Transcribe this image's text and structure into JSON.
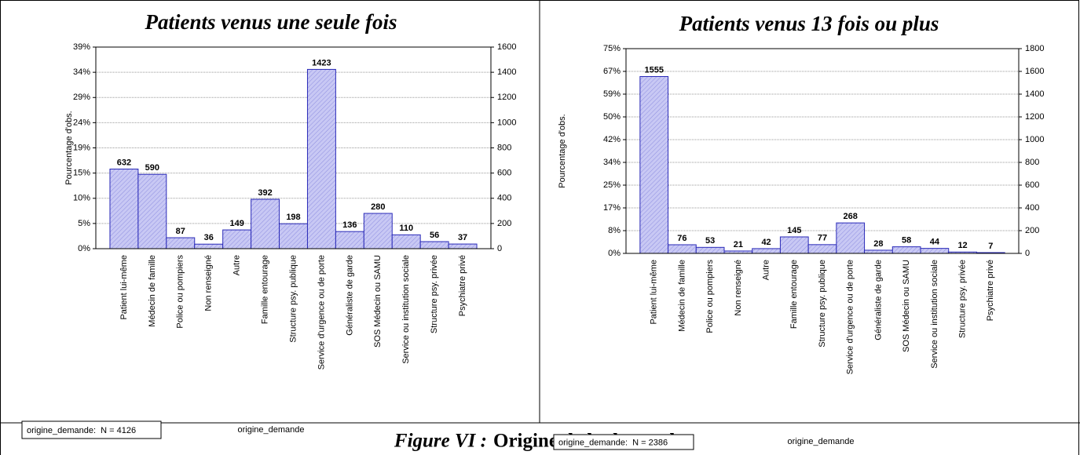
{
  "chart_data": [
    {
      "type": "bar",
      "title": "Patients venus une seule fois",
      "y_label": "Pourcentage d'obs.",
      "x_label": "origine_demande",
      "annotation": "origine_demande:  N = 4126",
      "categories": [
        "Patient lui-même",
        "Médecin de famille",
        "Police ou pompiers",
        "Non renseigné",
        "Autre",
        "Famille entourage",
        "Structure psy. publique",
        "Service d'urgence ou de porte",
        "Généraliste de garde",
        "SOS Médecin ou SAMU",
        "Service ou institution sociale",
        "Structure psy. privée",
        "Psychiatre privé"
      ],
      "series": [
        {
          "values": [
            632,
            590,
            87,
            36,
            149,
            392,
            198,
            1423,
            136,
            280,
            110,
            56,
            37
          ],
          "color": "#c8c8f4",
          "axis": "y2"
        }
      ],
      "ylim": [
        0,
        38.78
      ],
      "yticks": [
        {
          "value": 0,
          "label": "0%"
        },
        {
          "value": 4.85,
          "label": "5%"
        },
        {
          "value": 9.69,
          "label": "10%"
        },
        {
          "value": 14.54,
          "label": "15%"
        },
        {
          "value": 19.39,
          "label": "19%"
        },
        {
          "value": 24.24,
          "label": "24%"
        },
        {
          "value": 29.08,
          "label": "29%"
        },
        {
          "value": 33.93,
          "label": "34%"
        },
        {
          "value": 38.78,
          "label": "39%"
        }
      ],
      "y2lim": [
        0,
        1600
      ],
      "y2ticks": [
        0,
        200,
        400,
        600,
        800,
        1000,
        1200,
        1400,
        1600
      ],
      "grid": true
    },
    {
      "type": "bar",
      "title": "Patients venus 13 fois ou plus",
      "y_label": "Pourcentage d'obs.",
      "x_label": "origine_demande",
      "annotation": "origine_demande:  N = 2386",
      "categories": [
        "Patient lui-même",
        "Médecin de famille",
        "Police ou pompiers",
        "Non renseigné",
        "Autre",
        "Famille entourage",
        "Structure psy. publique",
        "Service d'urgence ou de porte",
        "Généraliste de garde",
        "SOS Médecin ou SAMU",
        "Service ou institution sociale",
        "Structure psy. privée",
        "Psychiatre privé"
      ],
      "series": [
        {
          "values": [
            1555,
            76,
            53,
            21,
            42,
            145,
            77,
            268,
            28,
            58,
            44,
            12,
            7
          ],
          "color": "#c8c8f4",
          "axis": "y2"
        }
      ],
      "ylim": [
        0,
        75.44
      ],
      "yticks": [
        {
          "value": 0,
          "label": "0%"
        },
        {
          "value": 8.38,
          "label": "8%"
        },
        {
          "value": 16.76,
          "label": "17%"
        },
        {
          "value": 25.15,
          "label": "25%"
        },
        {
          "value": 33.53,
          "label": "34%"
        },
        {
          "value": 41.91,
          "label": "42%"
        },
        {
          "value": 50.29,
          "label": "50%"
        },
        {
          "value": 58.68,
          "label": "59%"
        },
        {
          "value": 67.06,
          "label": "67%"
        },
        {
          "value": 75.44,
          "label": "75%"
        }
      ],
      "y2lim": [
        0,
        1800
      ],
      "y2ticks": [
        0,
        200,
        400,
        600,
        800,
        1000,
        1200,
        1400,
        1600,
        1800
      ],
      "grid": true
    }
  ],
  "caption": {
    "label": "Figure VI :",
    "text": "Origine de la demande"
  }
}
